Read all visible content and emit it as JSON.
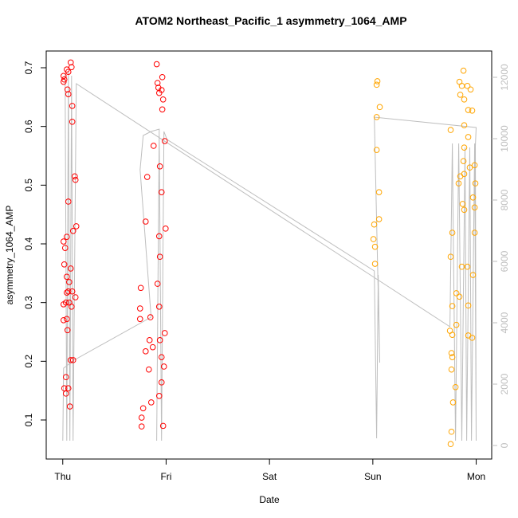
{
  "chart_data": {
    "type": "scatter",
    "title": "ATOM2 Northeast_Pacific_1 asymmetry_1064_AMP",
    "x_label": "Date",
    "y_label": "asymmetry_1064_AMP",
    "xlim": [
      -0.16,
      4.15
    ],
    "xticks": [
      {
        "value": 0,
        "label": "Thu"
      },
      {
        "value": 1,
        "label": "Fri"
      },
      {
        "value": 2,
        "label": "Sat"
      },
      {
        "value": 3,
        "label": "Sun"
      },
      {
        "value": 4,
        "label": "Mon"
      }
    ],
    "ylim": [
      0.0335,
      0.7285
    ],
    "yticks": [
      0.1,
      0.2,
      0.3,
      0.4,
      0.5,
      0.6,
      0.7
    ],
    "y2lim": [
      -441,
      12857
    ],
    "y2ticks": [
      0,
      2000,
      4000,
      6000,
      8000,
      10000,
      12000
    ],
    "y2_color": "#bebebe",
    "series": [
      {
        "type": "scatter",
        "color": "#ff0000",
        "x": [
          0.008,
          0.008,
          0.015,
          0.039,
          0.054,
          0.046,
          0.054,
          0.077,
          0.085,
          0.092,
          0.092,
          0.116,
          0.123,
          0.054,
          0.1,
          0.131,
          0.039,
          0.008,
          0.023,
          0.015,
          0.077,
          0.039,
          0.062,
          0.039,
          0.031,
          0.008,
          0.054,
          0.092,
          0.123,
          0.062,
          0.085,
          0.008,
          0.039,
          0.046,
          0.077,
          0.1,
          0.054,
          0.015,
          0.031,
          0.031,
          0.069,
          0.909,
          0.917,
          0.925,
          0.963,
          0.933,
          0.956,
          0.971,
          0.963,
          0.987,
          0.879,
          0.94,
          0.817,
          0.956,
          0.995,
          0.933,
          0.802,
          0.94,
          0.917,
          0.755,
          0.748,
          0.933,
          0.848,
          0.748,
          0.84,
          0.871,
          0.987,
          0.94,
          0.802,
          0.956,
          0.979,
          0.833,
          0.956,
          0.933,
          0.856,
          0.778,
          0.763,
          0.763,
          0.971
        ],
        "values": [
          0.686,
          0.676,
          0.68,
          0.697,
          0.693,
          0.663,
          0.655,
          0.709,
          0.701,
          0.635,
          0.608,
          0.515,
          0.509,
          0.472,
          0.422,
          0.43,
          0.412,
          0.404,
          0.393,
          0.365,
          0.358,
          0.344,
          0.335,
          0.317,
          0.3,
          0.297,
          0.319,
          0.319,
          0.309,
          0.3,
          0.293,
          0.27,
          0.272,
          0.253,
          0.202,
          0.202,
          0.154,
          0.154,
          0.173,
          0.145,
          0.123,
          0.706,
          0.674,
          0.666,
          0.684,
          0.657,
          0.662,
          0.646,
          0.629,
          0.575,
          0.567,
          0.532,
          0.514,
          0.488,
          0.426,
          0.413,
          0.438,
          0.378,
          0.332,
          0.325,
          0.29,
          0.293,
          0.275,
          0.272,
          0.236,
          0.224,
          0.248,
          0.236,
          0.217,
          0.207,
          0.191,
          0.186,
          0.164,
          0.141,
          0.13,
          0.12,
          0.104,
          0.089,
          0.09
        ]
      },
      {
        "type": "scatter",
        "color": "#ffa500",
        "x": [
          3.044,
          3.037,
          3.067,
          3.037,
          3.037,
          3.06,
          3.06,
          3.013,
          3.006,
          3.021,
          3.021,
          3.877,
          3.838,
          3.861,
          3.915,
          3.946,
          3.846,
          3.884,
          3.923,
          3.961,
          3.884,
          3.753,
          3.923,
          3.884,
          3.877,
          3.985,
          3.938,
          3.884,
          3.846,
          3.992,
          3.969,
          3.83,
          3.869,
          3.985,
          3.884,
          3.769,
          3.985,
          3.753,
          3.861,
          3.915,
          3.969,
          3.808,
          3.838,
          3.923,
          3.769,
          3.808,
          3.746,
          3.769,
          3.923,
          3.961,
          3.761,
          3.769,
          3.761,
          3.8,
          3.776,
          3.761,
          3.753
        ],
        "values": [
          0.677,
          0.671,
          0.633,
          0.616,
          0.56,
          0.488,
          0.442,
          0.433,
          0.408,
          0.395,
          0.366,
          0.695,
          0.676,
          0.669,
          0.669,
          0.663,
          0.654,
          0.646,
          0.628,
          0.627,
          0.602,
          0.594,
          0.582,
          0.564,
          0.541,
          0.534,
          0.53,
          0.519,
          0.515,
          0.503,
          0.479,
          0.503,
          0.468,
          0.462,
          0.458,
          0.419,
          0.419,
          0.378,
          0.361,
          0.361,
          0.347,
          0.316,
          0.31,
          0.295,
          0.294,
          0.262,
          0.252,
          0.245,
          0.244,
          0.24,
          0.214,
          0.207,
          0.186,
          0.156,
          0.13,
          0.08,
          0.059
        ]
      },
      {
        "type": "line",
        "axis": "y2",
        "color": "#bebebe",
        "x": [
          0,
          0.008,
          0.108,
          0.855,
          0.748,
          0.778,
          0.855,
          0.933,
          0.909,
          0.933,
          0.956,
          0.979,
          1.009,
          3.014,
          3.037,
          3.052,
          3.067,
          3.014,
          4.0,
          3.992,
          4.0,
          3.985,
          3.954,
          3.938,
          3.908,
          3.892,
          3.861,
          3.831,
          3.8,
          3.769,
          3.746,
          0.131,
          0.1,
          0.085,
          0.069,
          0.054,
          0.039,
          0.023
        ],
        "values": [
          156,
          2519,
          2779,
          4182,
          8987,
          10104,
          10234,
          10312,
          156,
          10104,
          156,
          10234,
          9974,
          5688,
          234,
          5558,
          2701,
          10701,
          10364,
          9766,
          156,
          9844,
          156,
          9714,
          156,
          9714,
          156,
          9844,
          156,
          9844,
          3870,
          11792,
          156,
          12052,
          156,
          12182,
          156,
          12130
        ]
      }
    ]
  }
}
